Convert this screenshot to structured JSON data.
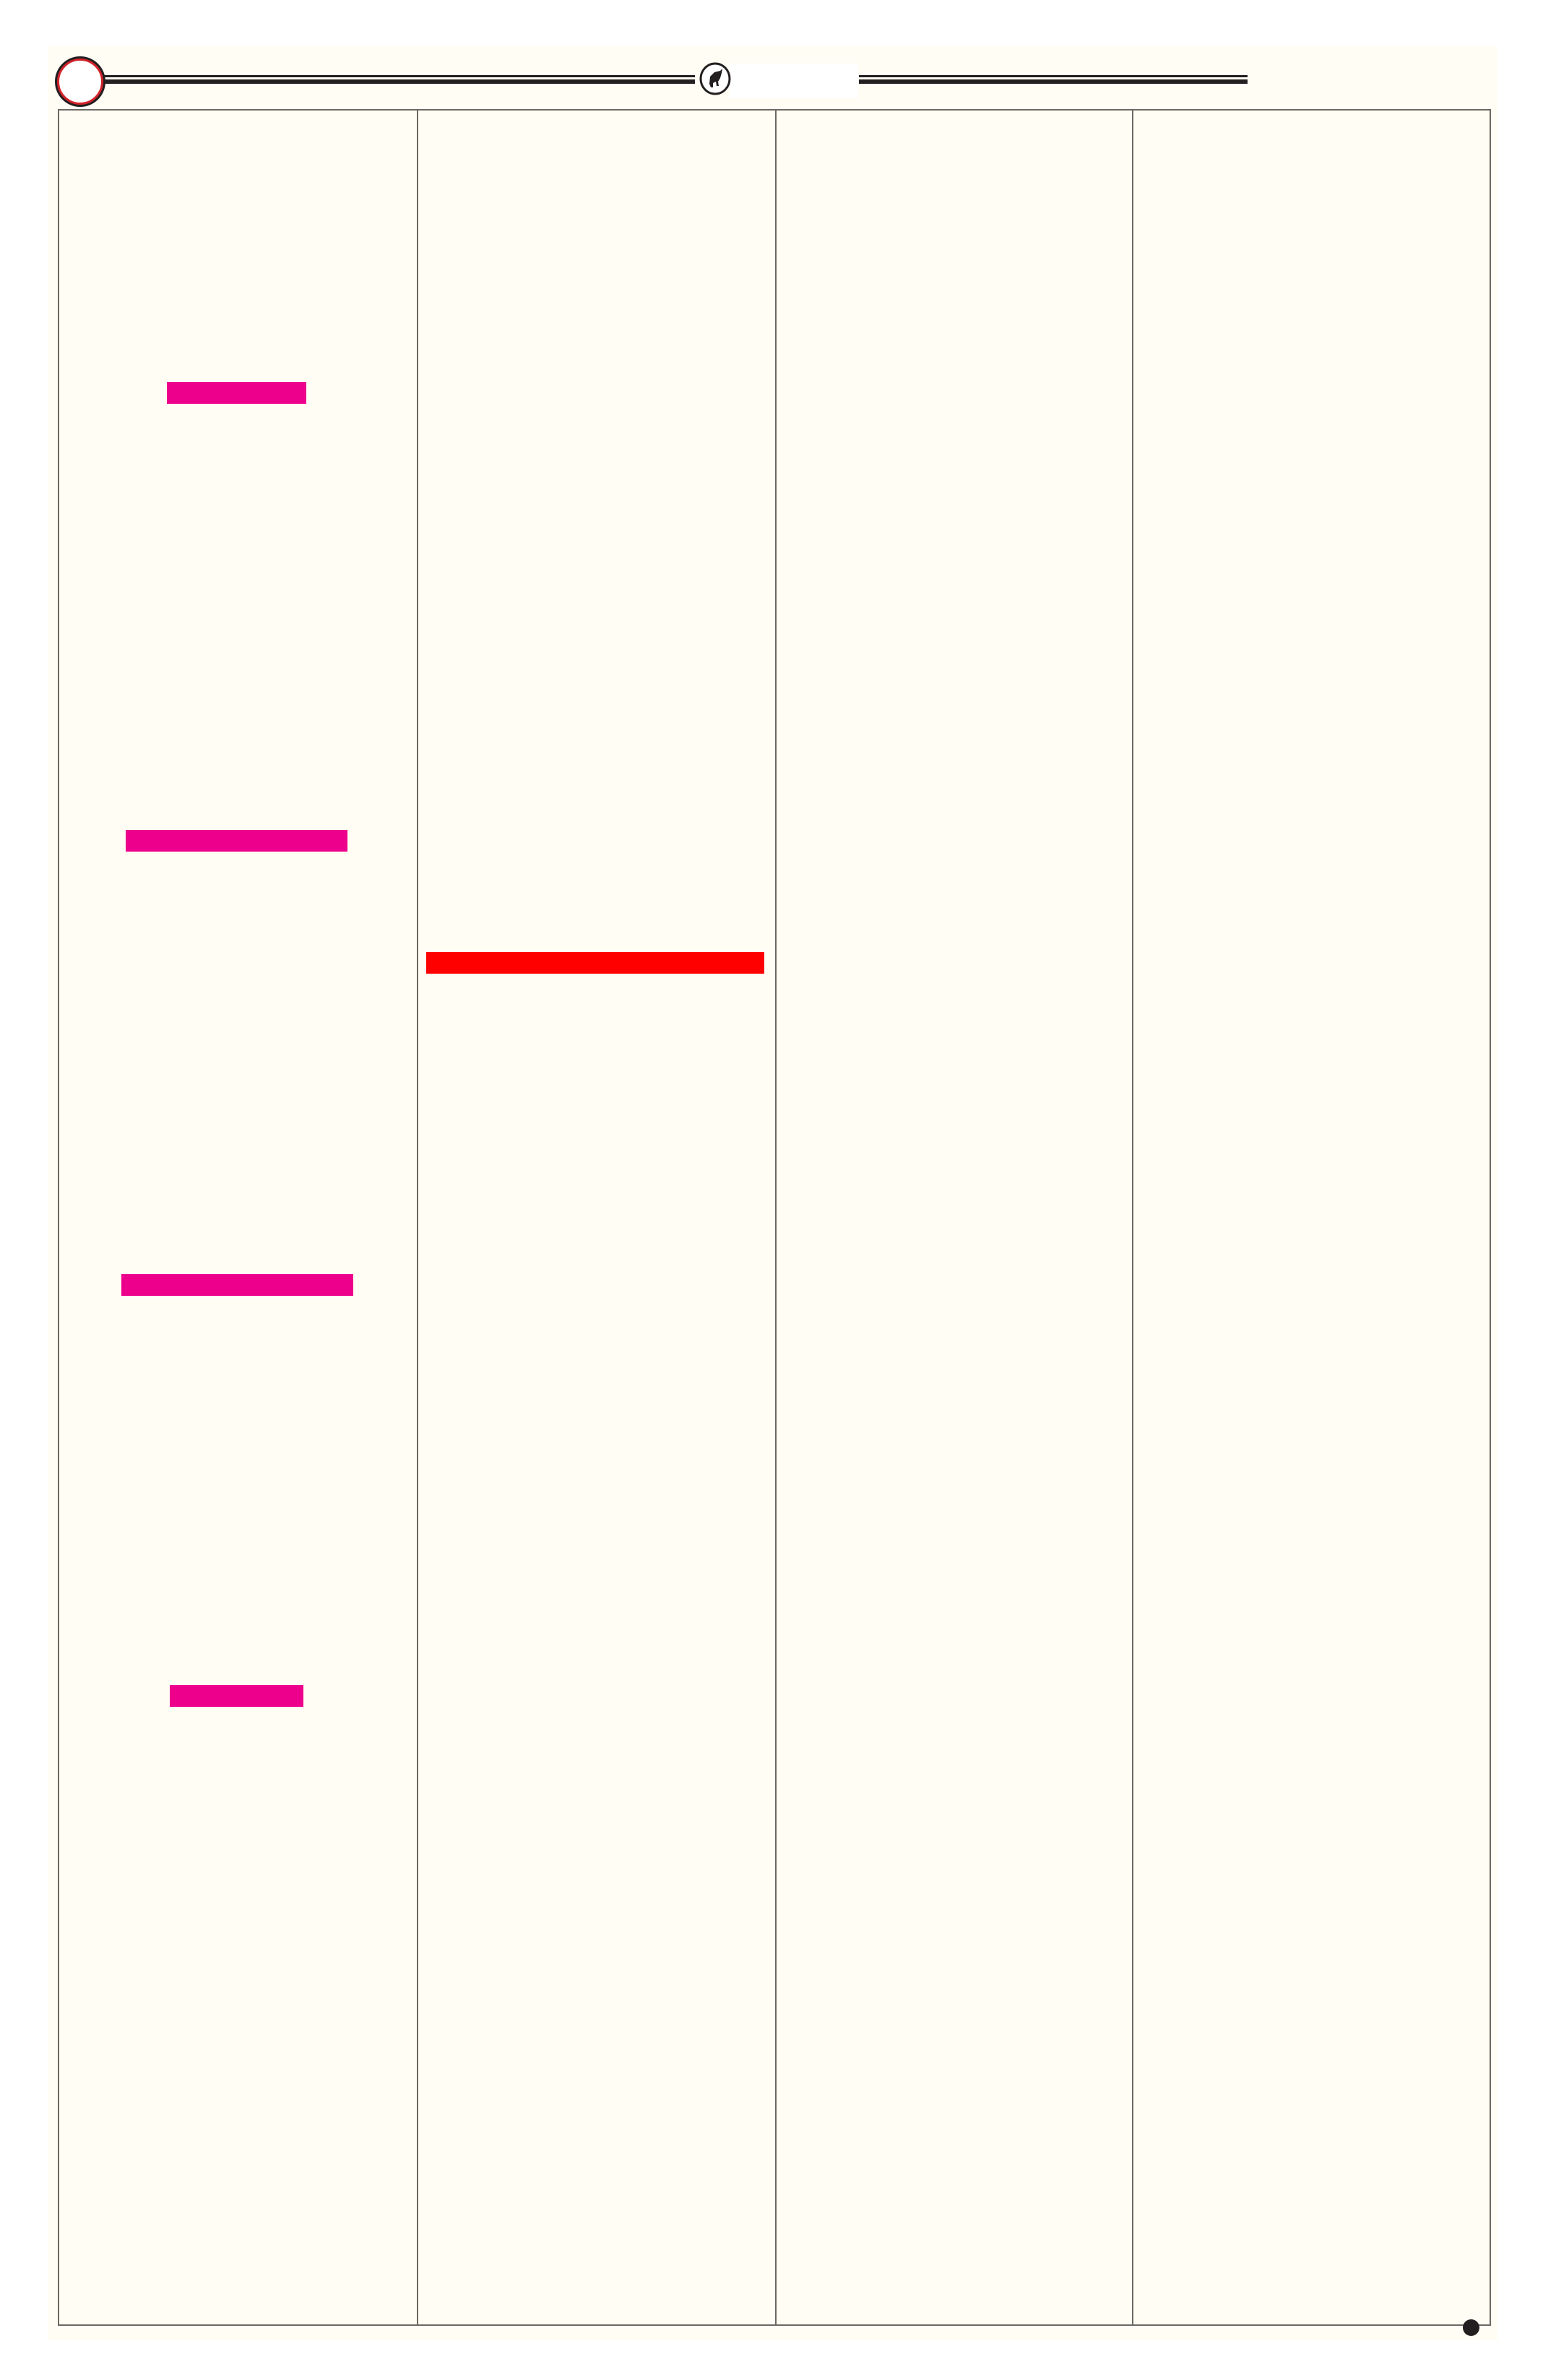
{
  "colors": {
    "background": "#fffdf4",
    "border": "#6b6a62",
    "rule": "#231f20",
    "ring": "#d2232a",
    "highlight_pink": "#ec008c",
    "highlight_red": "#ff0000"
  },
  "header": {
    "emblem_icon": "bull-emblem-icon"
  },
  "layout": {
    "columns": 4
  }
}
